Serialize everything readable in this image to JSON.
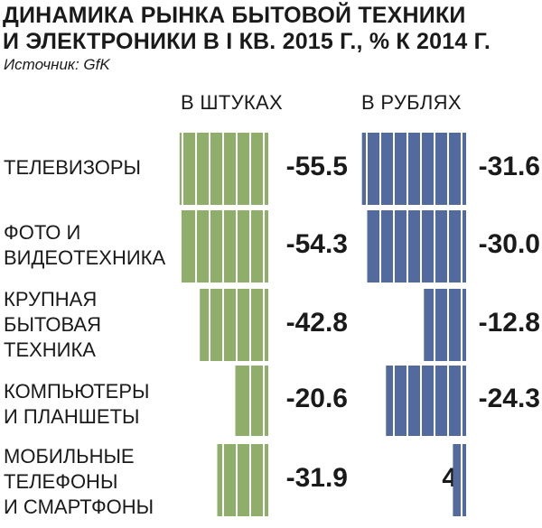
{
  "title_line1": "ДИНАМИКА РЫНКА БЫТОВОЙ ТЕХНИКИ",
  "title_line2": "И ЭЛЕКТРОНИКИ В I КВ. 2015 Г., % К 2014 Г.",
  "source": "Источник: GfK",
  "colors": {
    "units": "#8fae6c",
    "rubles": "#526a9e"
  },
  "chart_data": {
    "type": "bar",
    "title": "ДИНАМИКА РЫНКА БЫТОВОЙ ТЕХНИКИ И ЭЛЕКТРОНИКИ В I КВ. 2015 Г., % К 2014 Г.",
    "categories": [
      "ТЕЛЕВИЗОРЫ",
      "ФОТО И\nВИДЕОТЕХНИКА",
      "КРУПНАЯ\nБЫТОВАЯ\nТЕХНИКА",
      "КОМПЬЮТЕРЫ\nИ ПЛАНШЕТЫ",
      "МОБИЛЬНЫЕ\nТЕЛЕФОНЫ\nИ СМАРТФОНЫ"
    ],
    "series": [
      {
        "name": "В ШТУКАХ",
        "values": [
          -55.5,
          -54.3,
          -42.8,
          -20.6,
          -31.9
        ]
      },
      {
        "name": "В РУБЛЯХ",
        "values": [
          -31.6,
          -30.0,
          -12.8,
          -24.3,
          4
        ]
      }
    ],
    "value_labels": {
      "units": [
        "-55.5",
        "-54.3",
        "-42.8",
        "-20.6",
        "-31.9"
      ],
      "rubles": [
        "-31.6",
        "-30.0",
        "-12.8",
        "-24.3",
        "4"
      ]
    }
  }
}
